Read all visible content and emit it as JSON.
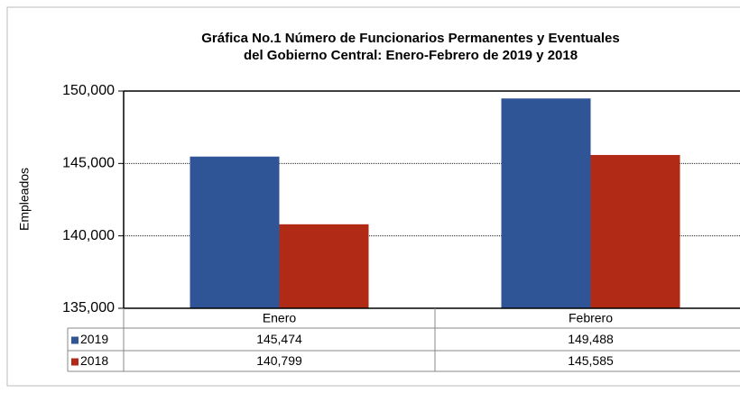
{
  "chart_data": {
    "type": "bar",
    "title": [
      "Gráfica No.1 Número de Funcionarios  Permanentes y Eventuales",
      "del Gobierno Central: Enero-Febrero  de  2019 y 2018"
    ],
    "y_label": "Empleados",
    "categories": [
      "Enero",
      "Febrero"
    ],
    "series": [
      {
        "name": "2019",
        "color": "#2f5597",
        "values": [
          145474,
          149488
        ],
        "value_labels": [
          "145,474",
          "149,488"
        ]
      },
      {
        "name": "2018",
        "color": "#b02a15",
        "values": [
          140799,
          145585
        ],
        "value_labels": [
          "140,799",
          "145,585"
        ]
      }
    ],
    "ylim": [
      135000,
      150000
    ],
    "yticks": [
      {
        "value": 135000,
        "label": "135,000"
      },
      {
        "value": 140000,
        "label": "140,000"
      },
      {
        "value": 145000,
        "label": "145,000"
      },
      {
        "value": 150000,
        "label": "150,000"
      }
    ],
    "grid": true
  }
}
